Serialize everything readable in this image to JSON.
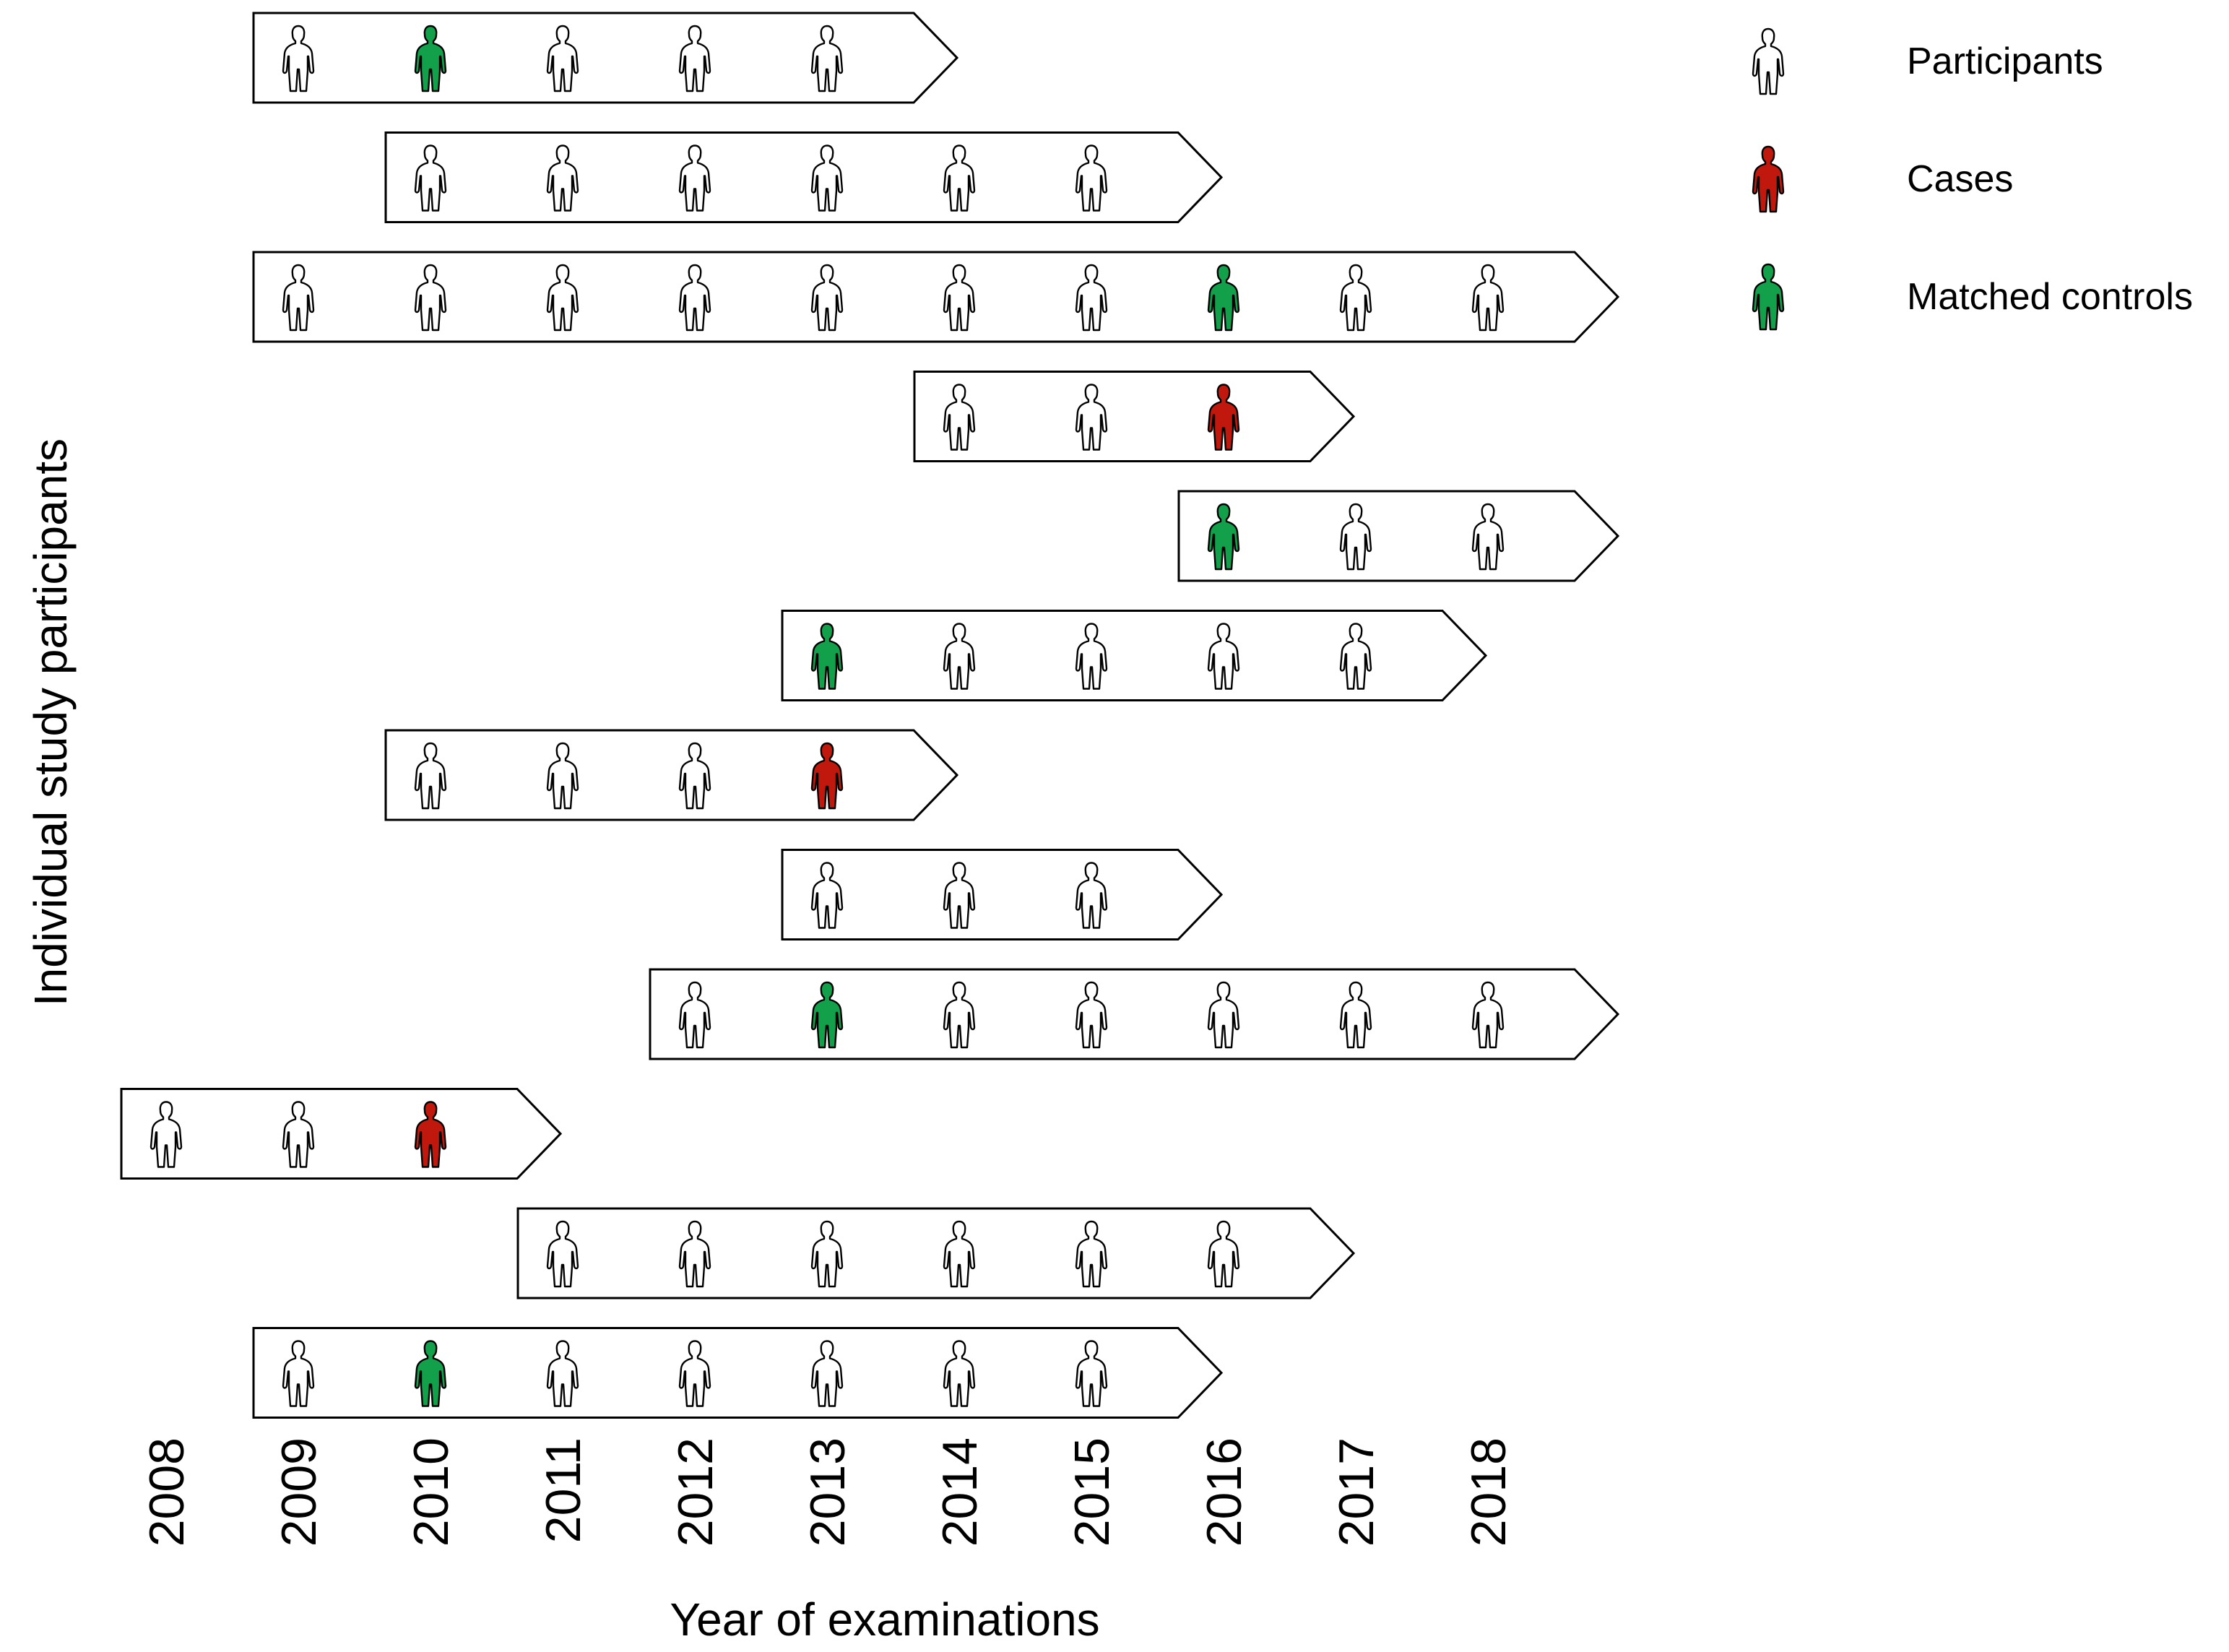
{
  "colors": {
    "participant": "#ffffff",
    "case": "#c0180c",
    "control": "#13a04a",
    "outline": "#000000"
  },
  "years": [
    "2008",
    "2009",
    "2010",
    "2011",
    "2012",
    "2013",
    "2014",
    "2015",
    "2016",
    "2017",
    "2018"
  ],
  "axis": {
    "x_title": "Year of examinations",
    "y_title": "Individual study participants"
  },
  "legend": [
    {
      "kind": "participant",
      "label": "Participants"
    },
    {
      "kind": "case",
      "label": "Cases"
    },
    {
      "kind": "control",
      "label": "Matched controls"
    }
  ],
  "rows": [
    {
      "years": [
        "2009",
        "2010",
        "2011",
        "2012",
        "2013"
      ],
      "marks": {
        "2010": "control"
      }
    },
    {
      "years": [
        "2010",
        "2011",
        "2012",
        "2013",
        "2014",
        "2015"
      ],
      "marks": {}
    },
    {
      "years": [
        "2009",
        "2010",
        "2011",
        "2012",
        "2013",
        "2014",
        "2015",
        "2016",
        "2017",
        "2018"
      ],
      "marks": {
        "2016": "control"
      }
    },
    {
      "years": [
        "2014",
        "2015",
        "2016"
      ],
      "marks": {
        "2016": "case"
      }
    },
    {
      "years": [
        "2016",
        "2017",
        "2018"
      ],
      "marks": {
        "2016": "control"
      }
    },
    {
      "years": [
        "2013",
        "2014",
        "2015",
        "2016",
        "2017"
      ],
      "marks": {
        "2013": "control"
      }
    },
    {
      "years": [
        "2010",
        "2011",
        "2012",
        "2013"
      ],
      "marks": {
        "2013": "case"
      }
    },
    {
      "years": [
        "2013",
        "2014",
        "2015"
      ],
      "marks": {}
    },
    {
      "years": [
        "2012",
        "2013",
        "2014",
        "2015",
        "2016",
        "2017",
        "2018"
      ],
      "marks": {
        "2013": "control"
      }
    },
    {
      "years": [
        "2008",
        "2009",
        "2010"
      ],
      "marks": {
        "2010": "case"
      }
    },
    {
      "years": [
        "2011",
        "2012",
        "2013",
        "2014",
        "2015",
        "2016"
      ],
      "marks": {}
    },
    {
      "years": [
        "2009",
        "2010",
        "2011",
        "2012",
        "2013",
        "2014",
        "2015"
      ],
      "marks": {
        "2010": "control"
      }
    }
  ]
}
